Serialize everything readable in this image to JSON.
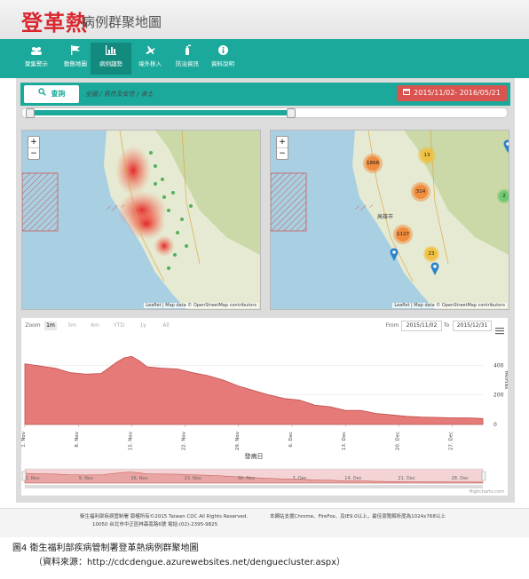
{
  "logo": {
    "main": "登革熱",
    "sub": "病例群聚地圖"
  },
  "nav": [
    {
      "label": "聚集警示",
      "icon": "group-icon"
    },
    {
      "label": "動態地圖",
      "icon": "flag-icon"
    },
    {
      "label": "病例趨勢",
      "icon": "bar-chart-icon"
    },
    {
      "label": "境外移入",
      "icon": "plane-icon"
    },
    {
      "label": "防治資訊",
      "icon": "spray-icon"
    },
    {
      "label": "資料說明",
      "icon": "info-icon"
    }
  ],
  "toolbar": {
    "search_label": "查詢",
    "filter_text": "全國 / 男性及女性 / 本土",
    "date_range": "2015/11/02- 2016/05/21"
  },
  "map_left": {
    "zoom_in": "+",
    "zoom_out": "−",
    "attribution": "Leaflet | Map data © OpenStreetMap contributors"
  },
  "map_right": {
    "zoom_in": "+",
    "zoom_out": "−",
    "attribution": "Leaflet | Map data © OpenStreetMap contributors",
    "clusters": [
      "1868",
      "13",
      "314",
      "2",
      "1127",
      "23"
    ],
    "city_label": "高雄市"
  },
  "chart_controls": {
    "zoom_label": "Zoom",
    "buttons": [
      "1m",
      "3m",
      "6m",
      "YTD",
      "1y",
      "All"
    ],
    "from_label": "From",
    "from_value": "2015/11/02",
    "to_label": "To",
    "to_value": "2015/12/31"
  },
  "chart_data": {
    "type": "area",
    "xlabel": "發病日",
    "ylabel": "病例數",
    "yticks": [
      0,
      200,
      400
    ],
    "ylim": [
      0,
      600
    ],
    "xticks": [
      "1. Nov",
      "8. Nov",
      "15. Nov",
      "22. Nov",
      "29. Nov",
      "6. Dec",
      "13. Dec",
      "20. Dec",
      "27. Dec"
    ],
    "navigator_ticks": [
      "2. Nov",
      "9. Nov",
      "16. Nov",
      "23. Nov",
      "30. Nov",
      "7. Dec",
      "14. Dec",
      "21. Dec",
      "28. Dec"
    ],
    "x": [
      "2015-11-01",
      "2015-11-03",
      "2015-11-05",
      "2015-11-07",
      "2015-11-09",
      "2015-11-11",
      "2015-11-13",
      "2015-11-14",
      "2015-11-15",
      "2015-11-16",
      "2015-11-17",
      "2015-11-19",
      "2015-11-21",
      "2015-11-23",
      "2015-11-25",
      "2015-11-27",
      "2015-11-29",
      "2015-12-01",
      "2015-12-03",
      "2015-12-05",
      "2015-12-07",
      "2015-12-09",
      "2015-12-11",
      "2015-12-13",
      "2015-12-15",
      "2015-12-17",
      "2015-12-19",
      "2015-12-21",
      "2015-12-23",
      "2015-12-25",
      "2015-12-27",
      "2015-12-29",
      "2015-12-31"
    ],
    "values": [
      410,
      395,
      380,
      350,
      340,
      345,
      420,
      450,
      460,
      430,
      390,
      380,
      375,
      350,
      330,
      300,
      260,
      230,
      200,
      175,
      165,
      130,
      120,
      95,
      95,
      75,
      65,
      55,
      50,
      48,
      45,
      45,
      40
    ],
    "credits": "Highcharts.com"
  },
  "footer": {
    "left1": "衛生福利部疾病管制署 版權所有©2015 Taiwan CDC All Rights Reserved.",
    "left2": "10050 台北市中正區林森南路6號 電話:(02)-2395-9825",
    "right": "本網站支援Chrome、FireFox、及IE9.0以上，最佳瀏覽解析度為1024x768以上"
  },
  "caption": {
    "line1": "圖4 衛生福利部疾病管制署登革熱病例群聚地圖",
    "line2": "（資料來源：http://cdcdengue.azurewebsites.net/denguecluster.aspx）"
  },
  "colors": {
    "teal": "#1aa99b",
    "red": "#d9534f",
    "area": "#e57a78"
  }
}
